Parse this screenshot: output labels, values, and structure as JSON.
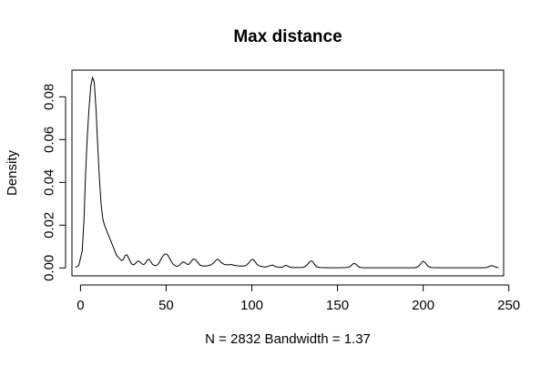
{
  "chart_data": {
    "type": "line",
    "title": "Max distance",
    "xlabel": "N = 2832   Bandwidth = 1.37",
    "ylabel": "Density",
    "xlim": [
      -5,
      247
    ],
    "ylim": [
      -0.0037,
      0.0925
    ],
    "x_ticks": [
      0,
      50,
      100,
      150,
      200,
      250
    ],
    "y_ticks": [
      0.0,
      0.02,
      0.04,
      0.06,
      0.08
    ],
    "x_tick_labels": [
      "0",
      "50",
      "100",
      "150",
      "200",
      "250"
    ],
    "y_tick_labels": [
      "0.00",
      "0.02",
      "0.04",
      "0.06",
      "0.08"
    ],
    "grid": false,
    "legend": "none",
    "line_color": "#000000",
    "series": [
      {
        "x": [
          -3,
          -1,
          1,
          2,
          3,
          4,
          5,
          6,
          7,
          8,
          9,
          10,
          11,
          12,
          13,
          14,
          15,
          16,
          17,
          18,
          19,
          20,
          21,
          22,
          23,
          24,
          25,
          26,
          27,
          28,
          29,
          30,
          31,
          32,
          33,
          34,
          35,
          36,
          37,
          38,
          39,
          40,
          41,
          42,
          43,
          44,
          45,
          46,
          47,
          48,
          49,
          50,
          51,
          52,
          53,
          54,
          55,
          56,
          57,
          58,
          59,
          60,
          61,
          62,
          63,
          64,
          65,
          66,
          67,
          68,
          69,
          70,
          72,
          74,
          76,
          78,
          79,
          80,
          81,
          82,
          84,
          86,
          88,
          90,
          92,
          94,
          96,
          97,
          98,
          99,
          100,
          101,
          102,
          103,
          104,
          106,
          108,
          110,
          112,
          114,
          116,
          118,
          119,
          120,
          121,
          122,
          124,
          126,
          128,
          130,
          131,
          132,
          133,
          134,
          135,
          136,
          137,
          138,
          140,
          145,
          150,
          155,
          157,
          158,
          159,
          160,
          161,
          162,
          163,
          165,
          170,
          175,
          180,
          185,
          190,
          195,
          197,
          198,
          199,
          200,
          201,
          202,
          203,
          205,
          210,
          215,
          220,
          225,
          230,
          235,
          237,
          238,
          239,
          240,
          241,
          242,
          244
        ],
        "values": [
          0.0002,
          0.0012,
          0.008,
          0.022,
          0.045,
          0.062,
          0.075,
          0.085,
          0.089,
          0.087,
          0.075,
          0.058,
          0.042,
          0.03,
          0.023,
          0.02,
          0.018,
          0.016,
          0.014,
          0.012,
          0.01,
          0.008,
          0.006,
          0.005,
          0.0042,
          0.0035,
          0.004,
          0.0058,
          0.0062,
          0.0048,
          0.003,
          0.0018,
          0.0015,
          0.002,
          0.003,
          0.0032,
          0.0026,
          0.0018,
          0.0016,
          0.0024,
          0.0038,
          0.0041,
          0.003,
          0.0017,
          0.0012,
          0.0011,
          0.0015,
          0.0026,
          0.0042,
          0.0055,
          0.0064,
          0.0066,
          0.0059,
          0.0045,
          0.003,
          0.0018,
          0.0012,
          0.0008,
          0.0009,
          0.0015,
          0.0024,
          0.0028,
          0.0025,
          0.0018,
          0.0016,
          0.0024,
          0.0035,
          0.0042,
          0.004,
          0.003,
          0.002,
          0.0012,
          0.0009,
          0.001,
          0.0014,
          0.0025,
          0.0036,
          0.0041,
          0.0036,
          0.0026,
          0.0016,
          0.0014,
          0.0016,
          0.0012,
          0.001,
          0.0009,
          0.001,
          0.0014,
          0.0022,
          0.0032,
          0.004,
          0.0038,
          0.0028,
          0.0017,
          0.0011,
          0.0006,
          0.0004,
          0.0009,
          0.0014,
          0.0006,
          0.0003,
          0.0004,
          0.001,
          0.0012,
          0.0009,
          0.0004,
          0.0002,
          0.0002,
          0.0002,
          0.0003,
          0.0006,
          0.0012,
          0.0022,
          0.0031,
          0.0033,
          0.0024,
          0.0012,
          0.0005,
          0.0002,
          0.0001,
          0.0001,
          0.0002,
          0.0005,
          0.0011,
          0.0019,
          0.0021,
          0.0016,
          0.0008,
          0.0003,
          0.0001,
          0.0001,
          0.0001,
          0.0001,
          0.0001,
          0.0001,
          0.0001,
          0.0006,
          0.0014,
          0.0024,
          0.0031,
          0.0027,
          0.0016,
          0.0007,
          0.0002,
          0.0001,
          0.0001,
          0.0001,
          0.0001,
          0.0001,
          0.0001,
          0.0002,
          0.0005,
          0.0009,
          0.0011,
          0.0009,
          0.0005,
          0.0001
        ]
      }
    ]
  }
}
